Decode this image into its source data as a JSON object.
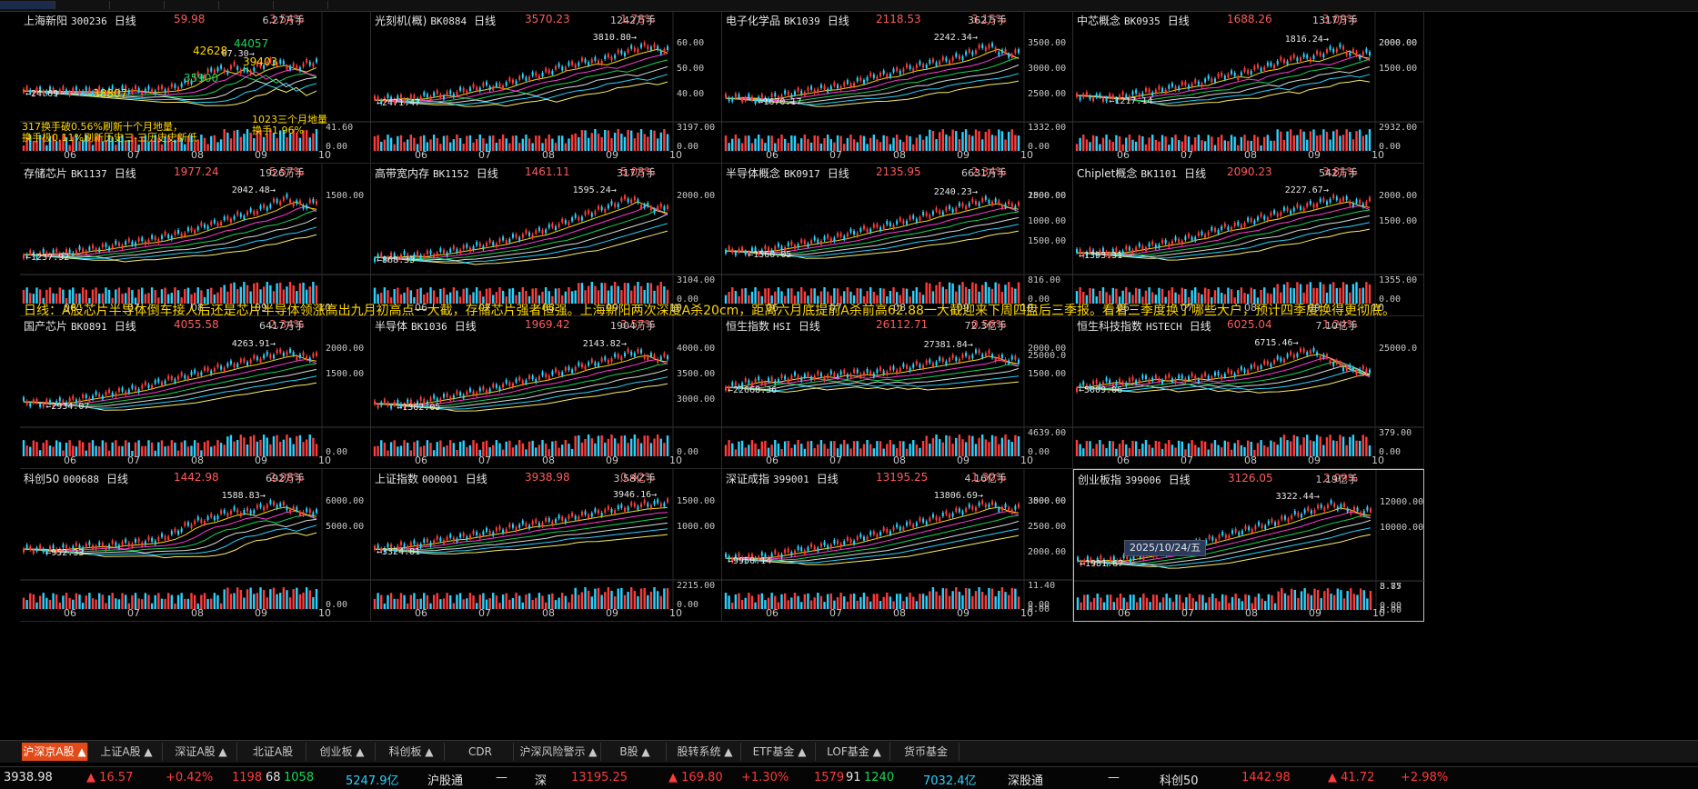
{
  "panels": [
    {
      "name": "上海新阳",
      "code": "300236",
      "period": "日线",
      "price": "59.98",
      "pct": "3.54%",
      "vol": "6.27万手",
      "hi": "67.30",
      "lo": "24.69",
      "ticks": [],
      "vol_tick": "41.60",
      "vol_zero": "0.00",
      "series": [
        30,
        30,
        30,
        30,
        30,
        30,
        30,
        30,
        30,
        31,
        32,
        31,
        30,
        31,
        32,
        34,
        38,
        45,
        48,
        55,
        52,
        58,
        50,
        56,
        60,
        62,
        58,
        55,
        60,
        62
      ],
      "notes": [
        "317换手破0.56%刷新十个月地量，",
        "换手极0.11%刷新历史三-三历史史新低",
        "1023三个月地量",
        "换手1.96%"
      ],
      "labels": [
        "42628",
        "44057",
        "38807",
        "35900",
        "39403"
      ]
    },
    {
      "name": "光刻机(概)",
      "code": "BK0884",
      "period": "日线",
      "price": "3570.23",
      "pct": "1.78%",
      "vol": "1242万手",
      "hi": "3810.80",
      "lo": "2471.47",
      "ticks": [
        "60.00",
        "50.00",
        "40.00"
      ],
      "vol_tick": "3197.00",
      "vol_zero": "0.00",
      "series": [
        20,
        21,
        22,
        21,
        22,
        24,
        26,
        25,
        28,
        31,
        33,
        36,
        34,
        38,
        42,
        45,
        47,
        50,
        55,
        57,
        60,
        63,
        62,
        66,
        70,
        74,
        77,
        80,
        76,
        74
      ]
    },
    {
      "name": "电子化学品",
      "code": "BK1039",
      "period": "日线",
      "price": "2118.53",
      "pct": "3.15%",
      "vol": "362万手",
      "hi": "2242.34",
      "lo": "1670.17",
      "ticks": [
        "3500.00",
        "3000.00",
        "2500.00"
      ],
      "vol_tick": "1332.00",
      "vol_zero": "0.00",
      "series": [
        22,
        23,
        22,
        21,
        22,
        24,
        26,
        28,
        30,
        32,
        33,
        35,
        37,
        40,
        44,
        47,
        48,
        52,
        55,
        57,
        60,
        62,
        64,
        67,
        71,
        76,
        80,
        74,
        70,
        72
      ]
    },
    {
      "name": "中芯概念",
      "code": "BK0935",
      "period": "日线",
      "price": "1688.26",
      "pct": "3.09%",
      "vol": "1317万手",
      "hi": "1816.24",
      "lo": "1217.14",
      "ticks": [
        "2000.00",
        "1500.00"
      ],
      "vol_tick": "2932.00",
      "vol_zero": "0.00",
      "series": [
        25,
        24,
        23,
        22,
        23,
        25,
        27,
        29,
        30,
        33,
        35,
        37,
        38,
        42,
        45,
        48,
        47,
        52,
        55,
        57,
        62,
        64,
        67,
        66,
        70,
        74,
        78,
        72,
        70,
        72
      ]
    },
    {
      "name": "存储芯片",
      "code": "BK1137",
      "period": "日线",
      "price": "1977.24",
      "pct": "5.57%",
      "vol": "1926万手",
      "hi": "2042.48",
      "lo": "1237.92",
      "ticks": [
        "1500.00"
      ],
      "vol_tick": "",
      "vol_zero": "",
      "series": [
        18,
        18,
        19,
        20,
        19,
        21,
        23,
        24,
        26,
        28,
        30,
        32,
        33,
        35,
        38,
        40,
        42,
        46,
        50,
        52,
        56,
        60,
        62,
        66,
        70,
        76,
        80,
        74,
        72,
        78
      ]
    },
    {
      "name": "高带宽内存",
      "code": "BK1152",
      "period": "日线",
      "price": "1461.11",
      "pct": "5.03%",
      "vol": "317万手",
      "hi": "1595.24",
      "lo": "868.33",
      "ticks": [
        "2000.00"
      ],
      "vol_tick": "3104.00",
      "vol_zero": "0.00",
      "series": [
        15,
        15,
        16,
        17,
        16,
        18,
        19,
        21,
        23,
        25,
        27,
        29,
        31,
        34,
        37,
        40,
        42,
        46,
        50,
        54,
        58,
        62,
        66,
        70,
        74,
        80,
        76,
        70,
        68,
        72
      ]
    },
    {
      "name": "半导体概念",
      "code": "BK0917",
      "period": "日线",
      "price": "2135.95",
      "pct": "2.34%",
      "vol": "6631万手",
      "hi": "2240.23",
      "lo": "1560.05",
      "ticks": [
        "1500.00",
        "1000.00"
      ],
      "vol_tick": "816.00",
      "vol_zero": "0.00",
      "series": [
        22,
        22,
        21,
        22,
        23,
        25,
        27,
        29,
        31,
        33,
        35,
        37,
        40,
        43,
        46,
        48,
        50,
        53,
        56,
        58,
        62,
        65,
        67,
        70,
        73,
        76,
        78,
        74,
        72,
        73
      ]
    },
    {
      "name": "Chiplet概念",
      "code": "BK1101",
      "period": "日线",
      "price": "2090.23",
      "pct": "3.81%",
      "vol": "542万手",
      "hi": "2227.67",
      "lo": "1393.31",
      "ticks": [
        "2000.00",
        "1500.00"
      ],
      "vol_tick": "1355.00",
      "vol_zero": "0.00",
      "series": [
        20,
        20,
        21,
        20,
        21,
        23,
        25,
        27,
        29,
        31,
        33,
        36,
        38,
        42,
        46,
        48,
        50,
        54,
        58,
        60,
        64,
        67,
        69,
        72,
        75,
        78,
        80,
        76,
        74,
        76
      ]
    },
    {
      "name": "国产芯片",
      "code": "BK0891",
      "period": "日线",
      "price": "4055.58",
      "pct": "2.34%",
      "vol": "6417万手",
      "hi": "4263.91",
      "lo": "2934.07",
      "ticks": [
        "2000.00",
        "1500.00"
      ],
      "vol_tick": "",
      "vol_zero": "0.00",
      "series": [
        24,
        23,
        22,
        23,
        24,
        26,
        28,
        30,
        32,
        34,
        36,
        38,
        41,
        44,
        47,
        50,
        52,
        55,
        58,
        60,
        63,
        66,
        68,
        71,
        74,
        77,
        79,
        75,
        73,
        74
      ]
    },
    {
      "name": "半导体",
      "code": "BK1036",
      "period": "日线",
      "price": "1969.42",
      "pct": "3.57%",
      "vol": "1904万手",
      "hi": "2143.82",
      "lo": "1362.05",
      "ticks": [
        "4000.00",
        "3500.00",
        "3000.00"
      ],
      "vol_tick": "",
      "vol_zero": "0.00",
      "series": [
        22,
        22,
        21,
        22,
        23,
        25,
        27,
        29,
        31,
        33,
        35,
        37,
        40,
        43,
        46,
        48,
        50,
        53,
        56,
        58,
        62,
        65,
        67,
        70,
        73,
        77,
        79,
        74,
        72,
        73
      ]
    },
    {
      "name": "恒生指数",
      "code": "HSI",
      "period": "日线",
      "price": "26112.71",
      "pct": "0.56%",
      "vol": "72.3亿手",
      "hi": "27381.84",
      "lo": "22668.36",
      "ticks": [
        "2000.00",
        "1500.00"
      ],
      "vol_tick": "4639.00",
      "vol_zero": "0.00",
      "series": [
        40,
        42,
        45,
        47,
        46,
        48,
        50,
        52,
        51,
        53,
        52,
        55,
        54,
        56,
        55,
        57,
        58,
        60,
        62,
        64,
        66,
        68,
        70,
        72,
        74,
        78,
        76,
        72,
        70,
        71
      ]
    },
    {
      "name": "恒生科技指数",
      "code": "HSTECH",
      "period": "日线",
      "price": "6025.04",
      "pct": "1.24%",
      "vol": "7.10亿手",
      "hi": "6715.46",
      "lo": "5009.06",
      "ticks": [
        "25000.0"
      ],
      "vol_tick": "379.00",
      "vol_zero": "0.00",
      "series": [
        40,
        42,
        44,
        46,
        44,
        46,
        48,
        50,
        48,
        50,
        49,
        51,
        50,
        52,
        53,
        55,
        57,
        60,
        63,
        66,
        70,
        74,
        78,
        80,
        76,
        70,
        64,
        60,
        58,
        60
      ]
    },
    {
      "name": "科创50",
      "code": "000688",
      "period": "日线",
      "price": "1442.98",
      "pct": "2.98%",
      "vol": "692万手",
      "hi": "1588.83",
      "lo": "952.33",
      "ticks": [
        "6000.00",
        "5000.00"
      ],
      "vol_tick": "",
      "vol_zero": "0.00",
      "series": [
        30,
        30,
        29,
        30,
        31,
        32,
        33,
        34,
        33,
        35,
        36,
        37,
        38,
        40,
        43,
        48,
        55,
        60,
        62,
        66,
        70,
        72,
        70,
        74,
        78,
        80,
        76,
        72,
        70,
        72
      ]
    },
    {
      "name": "上证指数",
      "code": "000001",
      "period": "日线",
      "price": "3938.98",
      "pct": "0.42%",
      "vol": "3.58亿手",
      "hi": "3946.16",
      "lo": "3324.81",
      "ticks": [
        "1500.00",
        "1000.00"
      ],
      "vol_tick": "2215.00",
      "vol_zero": "0.00",
      "series": [
        30,
        31,
        32,
        34,
        35,
        37,
        39,
        41,
        42,
        44,
        46,
        48,
        50,
        52,
        55,
        57,
        58,
        60,
        62,
        64,
        66,
        68,
        70,
        72,
        74,
        76,
        78,
        79,
        80,
        81
      ]
    },
    {
      "name": "深证成指",
      "code": "399001",
      "period": "日线",
      "price": "13195.25",
      "pct": "1.30%",
      "vol": "4.16亿手",
      "hi": "13806.69",
      "lo": "9950.14",
      "ticks": [
        "3500.00"
      ],
      "vol_tick": "",
      "vol_zero": "0.00",
      "series": [
        20,
        21,
        20,
        21,
        22,
        24,
        26,
        28,
        30,
        32,
        34,
        36,
        38,
        41,
        44,
        47,
        50,
        53,
        56,
        59,
        62,
        65,
        68,
        71,
        74,
        78,
        80,
        76,
        74,
        75
      ]
    },
    {
      "name": "创业板指",
      "code": "399006",
      "period": "日线",
      "price": "3126.05",
      "pct": "2.09%",
      "vol": "1.19亿手",
      "hi": "3322.44",
      "lo": "1981.67",
      "ticks": [
        "12000.00",
        "10000.00"
      ],
      "vol_tick": "8.85",
      "vol_zero": "0.00",
      "series": [
        18,
        18,
        19,
        18,
        19,
        21,
        23,
        25,
        27,
        29,
        32,
        35,
        38,
        41,
        44,
        47,
        50,
        53,
        56,
        59,
        62,
        66,
        70,
        73,
        76,
        80,
        78,
        74,
        72,
        73
      ]
    }
  ],
  "extra_ticks": {
    "p4": [
      "2000.00"
    ],
    "p7": [
      "2000.00",
      "1500.00"
    ],
    "p10": [
      "25000.0"
    ],
    "p15": [
      "3000.00",
      "2500.00",
      "2000.00"
    ],
    "p15_vol": [
      "11.40",
      "0.00"
    ],
    "p16_vol": [
      "3.77",
      "0.00"
    ]
  },
  "months": [
    "06",
    "07",
    "08",
    "09",
    "10"
  ],
  "annotation": "日线：A股芯片半导体倒车接人后还是芯片半导体领涨高出九月初高点一大截，存储芯片强者恒强。上海新阳两次深度A杀20cm，距离六月底提前A杀前高62.88一大截迎来下周四盘后三季报。看看三季度换了哪些大户，预计四季度换得更彻底。",
  "date_chip": "2025/10/24/五",
  "tabs": [
    "沪深京A股 ▲",
    "上证A股 ▲",
    "深证A股 ▲",
    "北证A股",
    "创业板 ▲",
    "科创板 ▲",
    "CDR",
    "沪深风险警示 ▲",
    "B股 ▲",
    "股转系统 ▲",
    "ETF基金 ▲",
    "LOF基金 ▲",
    "货币基金"
  ],
  "status": {
    "sh_index": "3938.98",
    "sh_change": "▲ 16.57",
    "sh_pct": "+0.42%",
    "sh_up": "1198",
    "sh_flat": "68",
    "sh_down": "1058",
    "sh_amount": "5247.9亿",
    "hgt_label": "沪股通",
    "hgt_val": "—",
    "sz_label": "深",
    "sz_index": "13195.25",
    "sz_change": "▲ 169.80",
    "sz_pct": "+1.30%",
    "sz_up": "1579",
    "sz_flat": "91",
    "sz_down": "1240",
    "sz_amount": "7032.4亿",
    "sgt_label": "深股通",
    "sgt_val": "—",
    "kc_label": "科创50",
    "kc_index": "1442.98",
    "kc_change": "▲ 41.72",
    "kc_pct": "+2.98%"
  },
  "colors": {
    "up": "#ff3b3b",
    "down": "#29d3ff",
    "ma5": "#ffffff",
    "ma10": "#ffd800",
    "ma20": "#ff3bd6",
    "ma30": "#19d45a",
    "ma60": "#dddddd",
    "ma120": "#29d3ff",
    "ma250": "#ffee66"
  }
}
